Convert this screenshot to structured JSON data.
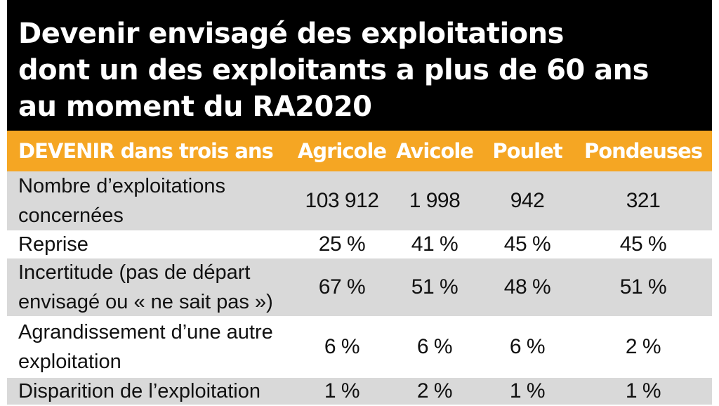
{
  "title": {
    "line1": "Devenir envisagé des exploitations",
    "line2": "dont un des exploitants a plus de 60 ans",
    "line3": "au moment du RA2020"
  },
  "table": {
    "header": {
      "label": "DEVENIR dans trois ans",
      "columns": [
        "Agricole",
        "Avicole",
        "Poulet",
        "Pondeuses"
      ]
    },
    "rows": [
      {
        "label_lines": [
          "Nombre d’exploitations",
          "concernées"
        ],
        "values": [
          "103 912",
          "1 998",
          "942",
          "321"
        ]
      },
      {
        "label_lines": [
          "Reprise"
        ],
        "values": [
          "25 %",
          "41 %",
          "45 %",
          "45 %"
        ]
      },
      {
        "label_lines": [
          "Incertitude (pas de départ",
          "envisagé ou « ne sait pas »)"
        ],
        "values": [
          "67 %",
          "51 %",
          "48 %",
          "51 %"
        ]
      },
      {
        "label_lines": [
          "Agrandissement d’une autre",
          "exploitation"
        ],
        "values": [
          "6 %",
          "6 %",
          "6 %",
          "2 %"
        ]
      },
      {
        "label_lines": [
          "Disparition de l’exploitation"
        ],
        "values": [
          "1 %",
          "2 %",
          "1 %",
          "1 %"
        ]
      }
    ]
  },
  "colors": {
    "title_bg": "#000000",
    "header_bg": "#f5a623",
    "row_gray": "#d9d9d9",
    "row_white": "#ffffff"
  }
}
